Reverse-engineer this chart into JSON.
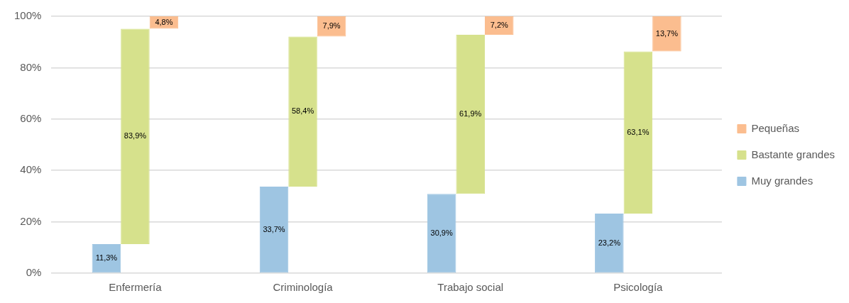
{
  "chart_data": {
    "type": "bar",
    "categories": [
      "Enfermería",
      "Criminología",
      "Trabajo social",
      "Psicología"
    ],
    "series": [
      {
        "name": "Muy grandes",
        "color": "#9ec5e2",
        "values": [
          11.3,
          33.7,
          30.9,
          23.2
        ],
        "base": [
          0,
          0,
          0,
          0
        ],
        "value_labels": [
          "11,3%",
          "33,7%",
          "30,9%",
          "23,2%"
        ]
      },
      {
        "name": "Bastante grandes",
        "color": "#d6e18c",
        "values": [
          83.9,
          58.4,
          61.9,
          63.1
        ],
        "base": [
          11.3,
          33.7,
          30.9,
          23.2
        ],
        "value_labels": [
          "83,9%",
          "58,4%",
          "61,9%",
          "63,1%"
        ]
      },
      {
        "name": "Pequeñas",
        "color": "#fbbd8f",
        "values": [
          4.8,
          7.9,
          7.2,
          13.7
        ],
        "base": [
          95.2,
          92.1,
          92.8,
          86.3
        ],
        "value_labels": [
          "4,8%",
          "7,9%",
          "7,2%",
          "13,7%"
        ]
      }
    ],
    "ylim": [
      0,
      100
    ],
    "yticks": [
      {
        "value": 0,
        "label": "0%"
      },
      {
        "value": 20,
        "label": "20%"
      },
      {
        "value": 40,
        "label": "40%"
      },
      {
        "value": 60,
        "label": "60%"
      },
      {
        "value": 80,
        "label": "80%"
      },
      {
        "value": 100,
        "label": "100%"
      }
    ],
    "grid": "y",
    "legend": "right"
  }
}
